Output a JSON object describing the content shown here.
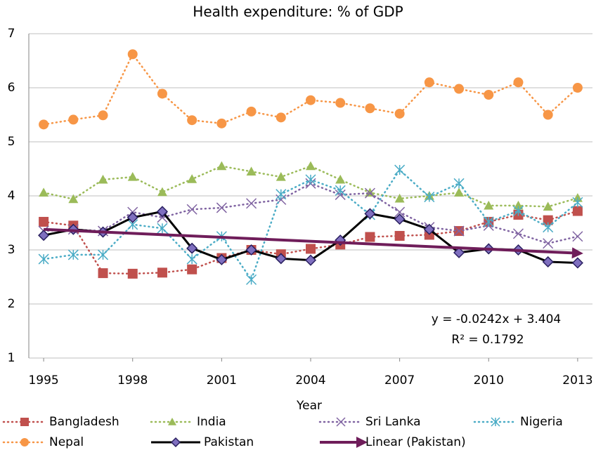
{
  "chart_data": {
    "type": "line",
    "title": "Health expenditure: % of GDP",
    "x_label": "Year",
    "x": [
      1995,
      1996,
      1997,
      1998,
      1999,
      2000,
      2001,
      2002,
      2003,
      2004,
      2005,
      2006,
      2007,
      2008,
      2009,
      2010,
      2011,
      2012,
      2013
    ],
    "xlim": [
      1994.5,
      2013.5
    ],
    "xticks": [
      1995,
      1998,
      2001,
      2004,
      2007,
      2010,
      2013
    ],
    "ylim": [
      1,
      7
    ],
    "yticks": [
      1,
      2,
      3,
      4,
      5,
      6,
      7
    ],
    "grid": true,
    "legend": "bottom",
    "series": [
      {
        "name": "Bangladesh",
        "color": "#c0504d",
        "marker": "square",
        "dash": "dotted",
        "values": [
          3.52,
          3.45,
          2.57,
          2.56,
          2.58,
          2.64,
          2.85,
          3.0,
          2.92,
          3.02,
          3.1,
          3.24,
          3.26,
          3.28,
          3.35,
          3.52,
          3.65,
          3.55,
          3.72
        ]
      },
      {
        "name": "India",
        "color": "#9bbb59",
        "marker": "triangle",
        "dash": "dotted",
        "values": [
          4.06,
          3.94,
          4.3,
          4.35,
          4.07,
          4.31,
          4.55,
          4.45,
          4.35,
          4.55,
          4.3,
          4.06,
          3.95,
          4.0,
          4.06,
          3.82,
          3.82,
          3.8,
          3.96
        ]
      },
      {
        "name": "Sri Lanka",
        "color": "#8064a2",
        "marker": "x",
        "dash": "dotted",
        "values": [
          3.35,
          3.38,
          3.35,
          3.7,
          3.6,
          3.75,
          3.78,
          3.86,
          3.93,
          4.23,
          4.02,
          4.05,
          3.7,
          3.42,
          3.35,
          3.45,
          3.3,
          3.12,
          3.25
        ]
      },
      {
        "name": "Nigeria",
        "color": "#4bacc6",
        "marker": "star",
        "dash": "dotted",
        "values": [
          2.83,
          2.91,
          2.91,
          3.47,
          3.4,
          2.83,
          3.25,
          2.45,
          4.03,
          4.3,
          4.1,
          3.65,
          4.48,
          3.98,
          4.23,
          3.52,
          3.72,
          3.42,
          3.88
        ]
      },
      {
        "name": "Nepal",
        "color": "#f79646",
        "marker": "circle",
        "dash": "dotted",
        "values": [
          5.32,
          5.41,
          5.49,
          6.62,
          5.89,
          5.4,
          5.34,
          5.56,
          5.45,
          5.77,
          5.72,
          5.62,
          5.52,
          6.1,
          5.98,
          5.87,
          6.1,
          5.5,
          6.0
        ]
      },
      {
        "name": "Pakistan",
        "color": "#000000",
        "marker_color": "#7f6fbf",
        "marker": "diamond",
        "dash": "solid",
        "values": [
          3.27,
          3.38,
          3.33,
          3.6,
          3.71,
          3.03,
          2.82,
          3.0,
          2.84,
          2.81,
          3.18,
          3.67,
          3.57,
          3.38,
          2.95,
          3.02,
          3.0,
          2.78,
          2.76
        ]
      },
      {
        "name": "Linear (Pakistan)",
        "color": "#6f1d5a",
        "marker": "arrow",
        "dash": "solid",
        "x": [
          1995,
          2013
        ],
        "values": [
          3.38,
          2.94
        ]
      }
    ],
    "annotations": [
      "y = -0.0242x + 3.404",
      "R² = 0.1792"
    ]
  }
}
